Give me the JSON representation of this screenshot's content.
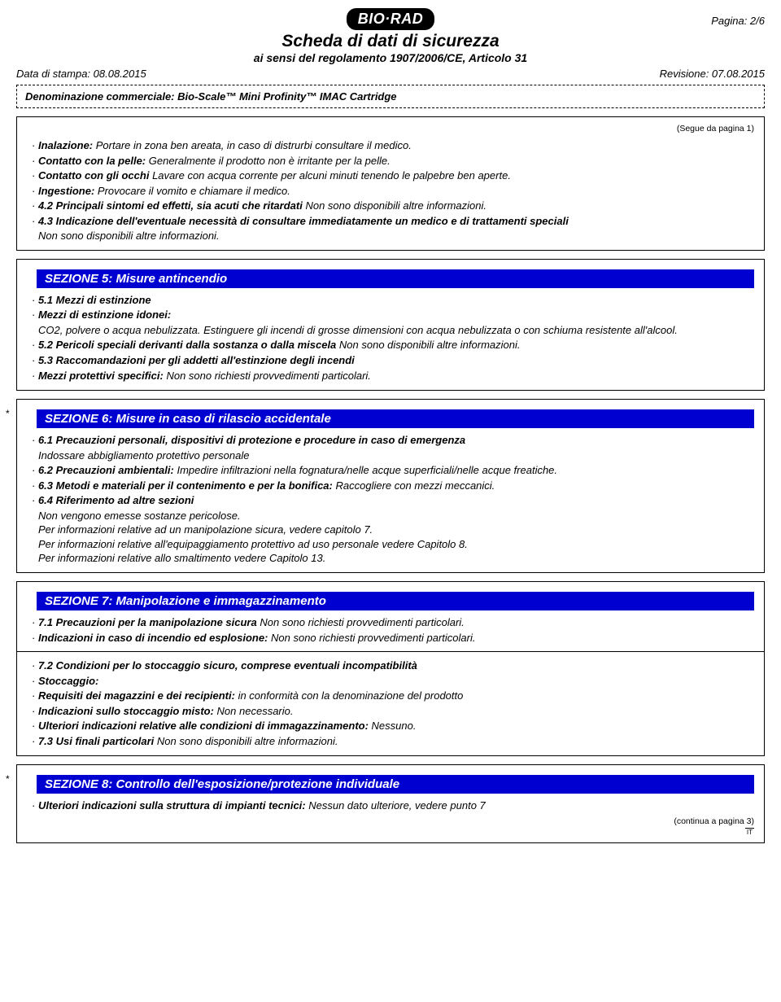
{
  "header": {
    "logo_text": "BIO·RAD",
    "main_title": "Scheda di dati di sicurezza",
    "sub_title": "ai sensi del regolamento 1907/2006/CE, Articolo 31",
    "page_label": "Pagina: 2/6",
    "print_date": "Data di stampa: 08.08.2015",
    "revision": "Revisione: 07.08.2015"
  },
  "denomination_label": "Denominazione commerciale:",
  "denomination_value": "Bio-Scale™ Mini Profinity™ IMAC Cartridge",
  "continues_from": "(Segue da pagina 1)",
  "section4": {
    "items": [
      {
        "label": "Inalazione:",
        "text": "Portare in zona ben areata, in caso di distrurbi consultare il medico."
      },
      {
        "label": "Contatto con la pelle:",
        "text": "Generalmente il prodotto non è irritante per la pelle."
      },
      {
        "label": "Contatto con gli occhi",
        "text": "Lavare con acqua corrente per alcuni minuti tenendo le palpebre ben aperte."
      },
      {
        "label": "Ingestione:",
        "text": "Provocare il vomito e chiamare il medico."
      },
      {
        "label": "4.2 Principali sintomi ed effetti, sia acuti che ritardati",
        "text": "Non sono disponibili altre informazioni."
      },
      {
        "label": "4.3 Indicazione dell'eventuale necessità di consultare immediatamente un medico e di trattamenti speciali",
        "text": ""
      }
    ],
    "extra_line": "Non sono disponibili altre informazioni."
  },
  "section5": {
    "title": "SEZIONE 5: Misure antincendio",
    "lines": [
      {
        "type": "bolditem",
        "text": "5.1 Mezzi di estinzione"
      },
      {
        "type": "bolditem",
        "text": "Mezzi di estinzione idonei:"
      },
      {
        "type": "plain",
        "text": "CO2, polvere o acqua nebulizzata. Estinguere gli incendi di grosse dimensioni con acqua nebulizzata o con schiuma resistente all'alcool."
      },
      {
        "type": "mixed",
        "label": "5.2 Pericoli speciali derivanti dalla sostanza o dalla miscela",
        "text": "Non sono disponibili altre informazioni."
      },
      {
        "type": "bolditem",
        "text": "5.3 Raccomandazioni per gli addetti all'estinzione degli incendi"
      },
      {
        "type": "mixed",
        "label": "Mezzi protettivi specifici:",
        "text": "Non sono richiesti provvedimenti particolari."
      }
    ]
  },
  "section6": {
    "title": "SEZIONE 6: Misure in caso di rilascio accidentale",
    "lines": [
      {
        "type": "bolditem",
        "text": "6.1 Precauzioni personali, dispositivi di protezione e procedure in caso di emergenza"
      },
      {
        "type": "plain",
        "text": "Indossare abbigliamento protettivo personale"
      },
      {
        "type": "mixed",
        "label": "6.2 Precauzioni ambientali:",
        "text": "Impedire infiltrazioni nella fognatura/nelle acque superficiali/nelle acque freatiche."
      },
      {
        "type": "mixed",
        "label": "6.3 Metodi e materiali per il contenimento e per la bonifica:",
        "text": "Raccogliere con mezzi meccanici."
      },
      {
        "type": "bolditem",
        "text": "6.4 Riferimento ad altre sezioni"
      },
      {
        "type": "plain",
        "text": "Non vengono emesse sostanze pericolose."
      },
      {
        "type": "plain",
        "text": "Per informazioni relative ad un manipolazione sicura, vedere capitolo 7."
      },
      {
        "type": "plain",
        "text": "Per informazioni relative all'equipaggiamento protettivo ad uso personale vedere Capitolo 8."
      },
      {
        "type": "plain",
        "text": "Per informazioni relative allo smaltimento vedere Capitolo 13."
      }
    ]
  },
  "section7": {
    "title": "SEZIONE 7: Manipolazione e immagazzinamento",
    "block1": [
      {
        "type": "mixed",
        "label": "7.1 Precauzioni per la manipolazione sicura",
        "text": "Non sono richiesti provvedimenti particolari."
      },
      {
        "type": "mixed",
        "label": "Indicazioni in caso di incendio ed esplosione:",
        "text": "Non sono richiesti provvedimenti particolari."
      }
    ],
    "block2": [
      {
        "type": "bolditem",
        "text": "7.2 Condizioni per lo stoccaggio sicuro, comprese eventuali incompatibilità"
      },
      {
        "type": "bolditem",
        "text": "Stoccaggio:"
      },
      {
        "type": "mixed",
        "label": "Requisiti dei magazzini e dei recipienti:",
        "text": "in conformità con la denominazione del prodotto"
      },
      {
        "type": "mixed",
        "label": "Indicazioni sullo stoccaggio misto:",
        "text": "Non necessario."
      },
      {
        "type": "mixed",
        "label": "Ulteriori indicazioni relative alle condizioni di immagazzinamento:",
        "text": "Nessuno."
      },
      {
        "type": "mixed",
        "label": "7.3 Usi finali particolari",
        "text": "Non sono disponibili altre informazioni."
      }
    ]
  },
  "section8": {
    "title": "SEZIONE 8: Controllo dell'esposizione/protezione individuale",
    "lines": [
      {
        "type": "mixed",
        "label": "Ulteriori indicazioni sulla struttura di impianti tecnici:",
        "text": "Nessun dato ulteriore, vedere punto 7"
      }
    ]
  },
  "continues_to": "(continua a pagina 3)",
  "lang_code": "IT",
  "colors": {
    "section_bg": "#0000d0",
    "section_fg": "#ffffff",
    "text": "#000000",
    "page_bg": "#ffffff"
  }
}
